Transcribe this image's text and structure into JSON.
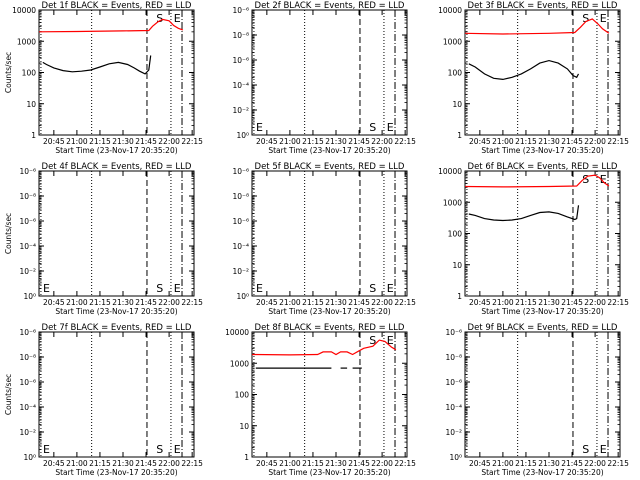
{
  "chart_data": [
    {
      "type": "line",
      "title": "Det 1f BLACK = Events, RED = LLD",
      "ylabel": "Counts/sec",
      "xlabel": "Start Time (23-Nov-17 20:35:20)",
      "yscale": "log",
      "ylim": [
        1,
        10000
      ],
      "y_ticks": [
        "1",
        "10",
        "100",
        "1000",
        "10000"
      ],
      "x_ticks": [
        "20:45",
        "21:00",
        "21:15",
        "21:30",
        "21:45",
        "22:00",
        "22:15"
      ],
      "markers": [
        "S",
        "E"
      ],
      "has_data": true,
      "series": [
        {
          "color": "#ff0000",
          "x": [
            20.59,
            21.0,
            21.5,
            21.78,
            21.82,
            21.88,
            21.93,
            22.0,
            22.05,
            22.1,
            22.15
          ],
          "values": [
            2000,
            2050,
            2150,
            2200,
            3000,
            4200,
            5000,
            4500,
            3200,
            2600,
            2300
          ]
        },
        {
          "color": "#000000",
          "x": [
            20.63,
            20.67,
            20.75,
            20.85,
            20.95,
            21.05,
            21.15,
            21.25,
            21.35,
            21.45,
            21.55,
            21.62,
            21.68,
            21.74,
            21.78,
            21.79,
            21.8
          ],
          "values": [
            210,
            180,
            140,
            115,
            105,
            110,
            120,
            150,
            190,
            210,
            180,
            140,
            110,
            90,
            120,
            200,
            350
          ]
        }
      ]
    },
    {
      "type": "line",
      "title": "Det 2f BLACK = Events, RED = LLD",
      "ylabel": "",
      "xlabel": "Start Time (23-Nov-17 20:35:20)",
      "yscale": "log",
      "ylim": [
        1,
        1000000
      ],
      "y_ticks": [
        "10⁰",
        "10⁻²",
        "10⁻⁴",
        "10⁻⁶",
        "10⁻⁸",
        "10⁻⁶"
      ],
      "x_ticks": [
        "20:45",
        "21:00",
        "21:15",
        "21:30",
        "21:45",
        "22:00",
        "22:15"
      ],
      "markers": [
        "E",
        "S",
        "E"
      ],
      "has_data": false,
      "series": []
    },
    {
      "type": "line",
      "title": "Det 3f BLACK = Events, RED = LLD",
      "ylabel": "",
      "xlabel": "Start Time (23-Nov-17 20:35:20)",
      "yscale": "log",
      "ylim": [
        1,
        10000
      ],
      "y_ticks": [
        "1",
        "10",
        "100",
        "1000",
        "10000"
      ],
      "x_ticks": [
        "20:45",
        "21:00",
        "21:15",
        "21:30",
        "21:45",
        "22:00",
        "22:15"
      ],
      "markers": [
        "S",
        "E"
      ],
      "has_data": true,
      "series": [
        {
          "color": "#ff0000",
          "x": [
            20.59,
            21.0,
            21.5,
            21.78,
            21.84,
            21.9,
            21.97,
            22.03,
            22.08,
            22.15
          ],
          "values": [
            1800,
            1700,
            1800,
            1900,
            2800,
            4300,
            5200,
            3600,
            2500,
            1800
          ]
        },
        {
          "color": "#000000",
          "x": [
            20.63,
            20.7,
            20.8,
            20.9,
            21.0,
            21.1,
            21.2,
            21.3,
            21.4,
            21.5,
            21.6,
            21.7,
            21.76,
            21.8,
            21.82
          ],
          "values": [
            190,
            150,
            90,
            65,
            60,
            70,
            90,
            130,
            200,
            240,
            200,
            130,
            80,
            70,
            90
          ]
        }
      ]
    },
    {
      "type": "line",
      "title": "Det 4f BLACK = Events, RED = LLD",
      "ylabel": "Counts/sec",
      "xlabel": "Start Time (23-Nov-17 20:35:20)",
      "yscale": "log",
      "ylim": [
        1,
        1000000
      ],
      "y_ticks": [
        "10⁰",
        "10⁻²",
        "10⁻⁴",
        "10⁻⁶",
        "10⁻⁸",
        "10⁻⁶"
      ],
      "x_ticks": [
        "20:45",
        "21:00",
        "21:15",
        "21:30",
        "21:45",
        "22:00",
        "22:15"
      ],
      "markers": [
        "E",
        "S",
        "E"
      ],
      "has_data": false,
      "series": []
    },
    {
      "type": "line",
      "title": "Det 5f BLACK = Events, RED = LLD",
      "ylabel": "",
      "xlabel": "Start Time (23-Nov-17 20:35:20)",
      "yscale": "log",
      "ylim": [
        1,
        1000000
      ],
      "y_ticks": [
        "10⁰",
        "10⁻²",
        "10⁻⁴",
        "10⁻⁶",
        "10⁻⁸",
        "10⁻⁶"
      ],
      "x_ticks": [
        "20:45",
        "21:00",
        "21:15",
        "21:30",
        "21:45",
        "22:00",
        "22:15"
      ],
      "markers": [
        "E",
        "S",
        "E"
      ],
      "has_data": false,
      "series": []
    },
    {
      "type": "line",
      "title": "Det 6f BLACK = Events, RED = LLD",
      "ylabel": "",
      "xlabel": "Start Time (23-Nov-17 20:35:20)",
      "yscale": "log",
      "ylim": [
        1,
        10000
      ],
      "y_ticks": [
        "1",
        "10",
        "100",
        "1000",
        "10000"
      ],
      "x_ticks": [
        "20:45",
        "21:00",
        "21:15",
        "21:30",
        "21:45",
        "22:00",
        "22:15"
      ],
      "markers": [
        "S",
        "E"
      ],
      "has_data": true,
      "series": [
        {
          "color": "#ff0000",
          "x": [
            20.59,
            21.0,
            21.5,
            21.8,
            21.86,
            21.92,
            22.0,
            22.05,
            22.1,
            22.15
          ],
          "values": [
            3200,
            3100,
            3200,
            3300,
            5000,
            6800,
            7400,
            6000,
            4200,
            3300
          ]
        },
        {
          "color": "#000000",
          "x": [
            20.63,
            20.7,
            20.8,
            20.9,
            21.0,
            21.1,
            21.2,
            21.3,
            21.4,
            21.5,
            21.6,
            21.7,
            21.78,
            21.8,
            21.82
          ],
          "values": [
            420,
            380,
            300,
            270,
            260,
            270,
            300,
            380,
            470,
            490,
            440,
            340,
            280,
            300,
            800
          ]
        }
      ]
    },
    {
      "type": "line",
      "title": "Det 7f BLACK = Events, RED = LLD",
      "ylabel": "Counts/sec",
      "xlabel": "Start Time (23-Nov-17 20:35:20)",
      "yscale": "log",
      "ylim": [
        1,
        1000000
      ],
      "y_ticks": [
        "10⁰",
        "10⁻²",
        "10⁻⁴",
        "10⁻⁶",
        "10⁻⁸",
        "10⁻⁶"
      ],
      "x_ticks": [
        "20:45",
        "21:00",
        "21:15",
        "21:30",
        "21:45",
        "22:00",
        "22:15"
      ],
      "markers": [
        "E",
        "S",
        "E"
      ],
      "has_data": false,
      "series": []
    },
    {
      "type": "line",
      "title": "Det 8f BLACK = Events, RED = LLD",
      "ylabel": "",
      "xlabel": "Start Time (23-Nov-17 20:35:20)",
      "yscale": "log",
      "ylim": [
        1,
        10000
      ],
      "y_ticks": [
        "1",
        "10",
        "100",
        "1000",
        "10000"
      ],
      "x_ticks": [
        "20:45",
        "21:00",
        "21:15",
        "21:30",
        "21:45",
        "22:00",
        "22:15"
      ],
      "markers": [
        "S",
        "E"
      ],
      "has_data": true,
      "series": [
        {
          "color": "#ff0000",
          "x": [
            20.59,
            21.0,
            21.3,
            21.36,
            21.45,
            21.5,
            21.55,
            21.62,
            21.68,
            21.75,
            21.8,
            21.9,
            21.97,
            22.03,
            22.1,
            22.15
          ],
          "values": [
            1900,
            1850,
            1900,
            2300,
            2300,
            1900,
            2300,
            2300,
            1900,
            2500,
            3000,
            3500,
            5500,
            5000,
            3300,
            2700
          ]
        },
        {
          "color": "#000000",
          "x": [
            20.63,
            21.45
          ],
          "values": [
            700,
            700
          ]
        },
        {
          "color": "#000000",
          "x": [
            21.55,
            21.62
          ],
          "values": [
            700,
            700
          ]
        },
        {
          "color": "#000000",
          "x": [
            21.68,
            21.78
          ],
          "values": [
            700,
            700
          ]
        }
      ]
    },
    {
      "type": "line",
      "title": "Det 9f BLACK = Events, RED = LLD",
      "ylabel": "",
      "xlabel": "Start Time (23-Nov-17 20:35:20)",
      "yscale": "log",
      "ylim": [
        1,
        1000000
      ],
      "y_ticks": [
        "10⁰",
        "10⁻²",
        "10⁻⁴",
        "10⁻⁶",
        "10⁻⁸",
        "10⁻⁶"
      ],
      "x_ticks": [
        "20:45",
        "21:00",
        "21:15",
        "21:30",
        "21:45",
        "22:00",
        "22:15"
      ],
      "markers": [
        "S",
        "E"
      ],
      "has_data": false,
      "series": []
    }
  ]
}
